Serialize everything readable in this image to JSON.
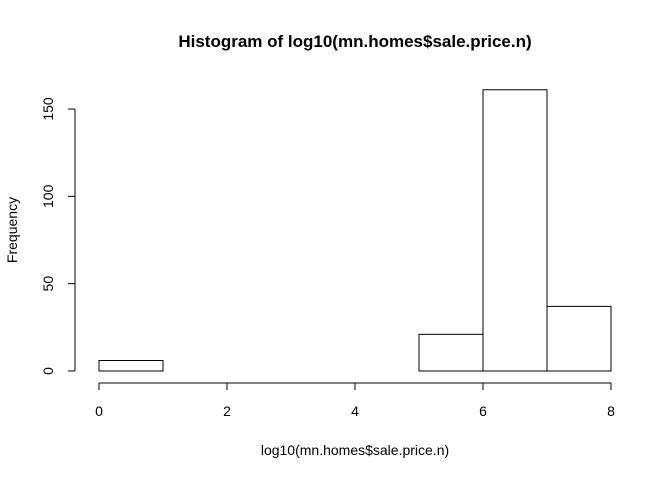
{
  "chart_data": {
    "type": "bar",
    "subtype": "histogram",
    "title": "Histogram of log10(mn.homes$sale.price.n)",
    "xlabel": "log10(mn.homes$sale.price.n)",
    "ylabel": "Frequency",
    "bins": [
      {
        "from": 0,
        "to": 1,
        "count": 6
      },
      {
        "from": 1,
        "to": 2,
        "count": 0
      },
      {
        "from": 2,
        "to": 3,
        "count": 0
      },
      {
        "from": 3,
        "to": 4,
        "count": 0
      },
      {
        "from": 4,
        "to": 5,
        "count": 0
      },
      {
        "from": 5,
        "to": 6,
        "count": 21
      },
      {
        "from": 6,
        "to": 7,
        "count": 161
      },
      {
        "from": 7,
        "to": 8,
        "count": 37
      }
    ],
    "xlim": [
      0,
      8
    ],
    "ylim": [
      0,
      150
    ],
    "x_ticks": [
      "0",
      "2",
      "4",
      "6",
      "8"
    ],
    "y_ticks": [
      "0",
      "50",
      "100",
      "150"
    ],
    "grid": false,
    "bar_fill": "#ffffff",
    "bar_stroke": "#000000"
  }
}
